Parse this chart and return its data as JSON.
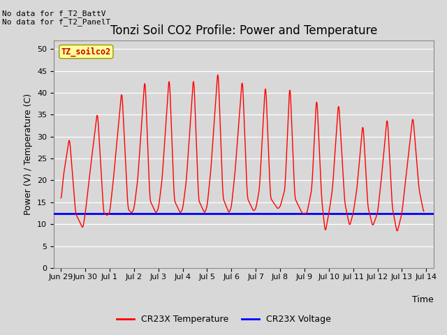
{
  "title": "Tonzi Soil CO2 Profile: Power and Temperature",
  "ylabel": "Power (V) / Temperature (C)",
  "xlabel": "Time",
  "ylim": [
    0,
    52
  ],
  "yticks": [
    0,
    5,
    10,
    15,
    20,
    25,
    30,
    35,
    40,
    45,
    50
  ],
  "bg_color": "#d8d8d8",
  "plot_bg_color": "#d8d8d8",
  "grid_color": "#ffffff",
  "no_data_text1": "No data for f_T2_BattV",
  "no_data_text2": "No data for f_T2_PanelT",
  "legend_label1": "TZ_soilco2",
  "legend_label2": "CR23X Temperature",
  "legend_label3": "CR23X Voltage",
  "temp_color": "#ff0000",
  "voltage_color": "#0000ff",
  "voltage_value": 12.5,
  "xtick_labels": [
    "Jun 29",
    "Jun 30",
    "Jul 1",
    "Jul 2",
    "Jul 3",
    "Jul 4",
    "Jul 5",
    "Jul 6",
    "Jul 7",
    "Jul 8",
    "Jul 9",
    "Jul 10",
    "Jul 11",
    "Jul 12",
    "Jul 13",
    "Jul 14"
  ],
  "soilco2_box_color": "#ffff99",
  "soilco2_text_color": "#cc0000",
  "title_fontsize": 12,
  "axis_label_fontsize": 9,
  "tick_fontsize": 8,
  "nodata_fontsize": 8,
  "legend_fontsize": 9
}
